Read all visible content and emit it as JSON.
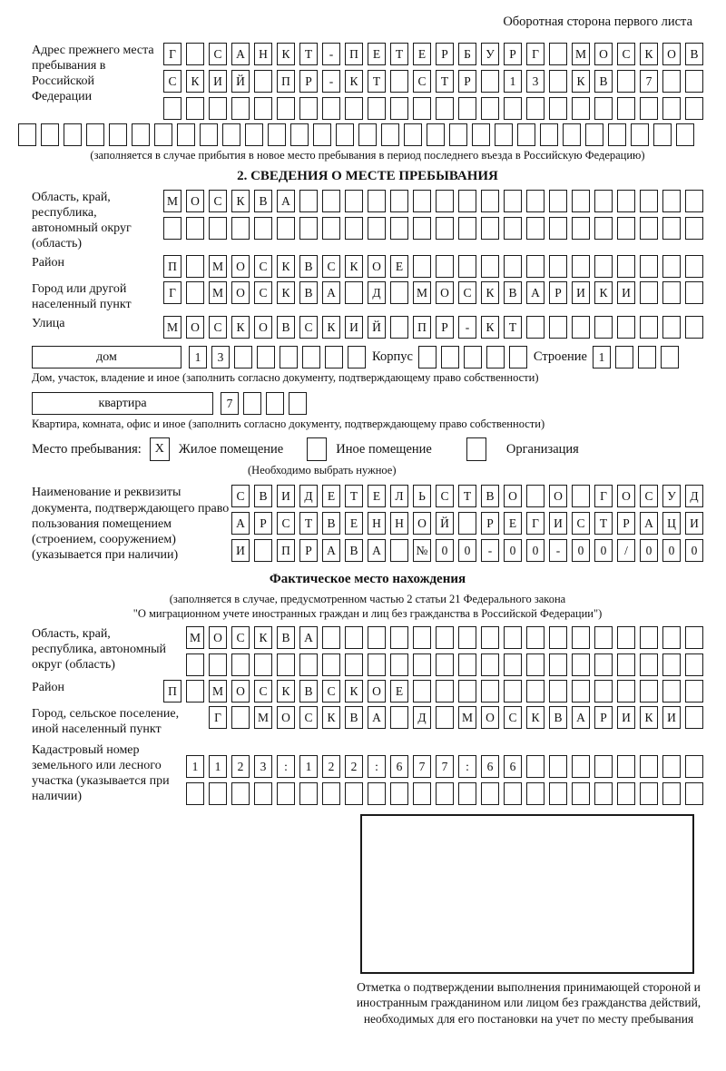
{
  "page_note": "Оборотная сторона первого листа",
  "colors": {
    "ink": "#111111",
    "line": "#1a1a1a"
  },
  "prev_address": {
    "label": "Адрес прежнего места пребывания в Российской Федерации",
    "rows": [
      {
        "cells": 24,
        "text": "Г САНКТ-ПЕТЕРБУРГ МОСКОВ"
      },
      {
        "cells": 24,
        "text": "СКИЙ ПР-КТ СТР 13 КВ 7"
      },
      {
        "cells": 24,
        "text": ""
      },
      {
        "cells": 30,
        "text": ""
      }
    ],
    "note": "(заполняется в случае прибытия в новое место пребывания в период последнего въезда в Российскую Федерацию)"
  },
  "section2": {
    "title": "2. СВЕДЕНИЯ О МЕСТЕ ПРЕБЫВАНИЯ",
    "region": {
      "label": "Область, край, республика, автономный округ (область)",
      "rows": [
        {
          "cells": 24,
          "text": "МОСКВА"
        },
        {
          "cells": 24,
          "text": ""
        }
      ]
    },
    "district": {
      "label": "Район",
      "rows": [
        {
          "cells": 24,
          "text": "П МОСКВСКОЕ"
        }
      ]
    },
    "city": {
      "label": "Город или другой населенный пункт",
      "rows": [
        {
          "cells": 24,
          "text": "Г МОСКВА Д МОСКВАРИКИ"
        }
      ]
    },
    "street": {
      "label": "Улица",
      "rows": [
        {
          "cells": 24,
          "text": "МОСКОВСКИЙ ПР-КТ"
        }
      ]
    },
    "house": {
      "box_label": "дом",
      "grid": {
        "cells": 8,
        "text": "13"
      },
      "korpus_label": "Корпус",
      "korpus_grid": {
        "cells": 5,
        "text": ""
      },
      "stroenie_label": "Строение",
      "stroenie_grid": {
        "cells": 4,
        "text": "1"
      }
    },
    "house_note": "Дом, участок, владение и иное (заполнить согласно документу, подтверждающему право собственности)",
    "flat": {
      "box_label": "квартира",
      "grid": {
        "cells": 4,
        "text": "7"
      }
    },
    "flat_note": "Квартира, комната, офис и иное (заполнить согласно документу, подтверждающему право собственности)",
    "stay_type": {
      "label": "Место пребывания:",
      "options": [
        {
          "label": "Жилое помещение",
          "mark": "X"
        },
        {
          "label": "Иное помещение",
          "mark": ""
        },
        {
          "label": "Организация",
          "mark": ""
        }
      ],
      "note": "(Необходимо выбрать нужное)"
    },
    "document": {
      "label": "Наименование и реквизиты документа, подтверждающего право пользования помещением (строением, сооружением) (указывается при наличии)",
      "rows": [
        {
          "cells": 21,
          "text": "СВИДЕТЕЛЬСТВО О ГОСУД"
        },
        {
          "cells": 21,
          "text": "АРСТВЕННОЙ РЕГИСТРАЦИ"
        },
        {
          "cells": 21,
          "text": "И ПРАВА №00-00-00/000"
        }
      ]
    }
  },
  "actual_location": {
    "title": "Фактическое место нахождения",
    "note_line1": "(заполняется в случае, предусмотренном частью 2 статьи 21 Федерального закона",
    "note_line2": "\"О миграционном учете иностранных граждан и лиц без гражданства в Российской Федерации\")",
    "region": {
      "label": "Область, край, республика, автономный округ (область)",
      "rows": [
        {
          "cells": 23,
          "text": "МОСКВА"
        },
        {
          "cells": 23,
          "text": ""
        }
      ]
    },
    "district": {
      "label": "Район",
      "rows": [
        {
          "cells": 24,
          "text": "П МОСКВСКОЕ"
        }
      ]
    },
    "city": {
      "label": "Город, сельское поселение, иной населенный пункт",
      "rows": [
        {
          "cells": 22,
          "text": "Г МОСКВА Д МОСКВАРИКИ"
        }
      ]
    },
    "cadastral": {
      "label": "Кадастровый номер земельного или лесного участка (указывается при наличии)",
      "rows": [
        {
          "cells": 23,
          "text": "1123:122:677:66"
        },
        {
          "cells": 23,
          "text": ""
        }
      ]
    },
    "stamp_note": "Отметка о подтверждении выполнения принимающей стороной и иностранным гражданином или лицом без гражданства действий, необходимых для его постановки на учет по месту пребывания"
  }
}
